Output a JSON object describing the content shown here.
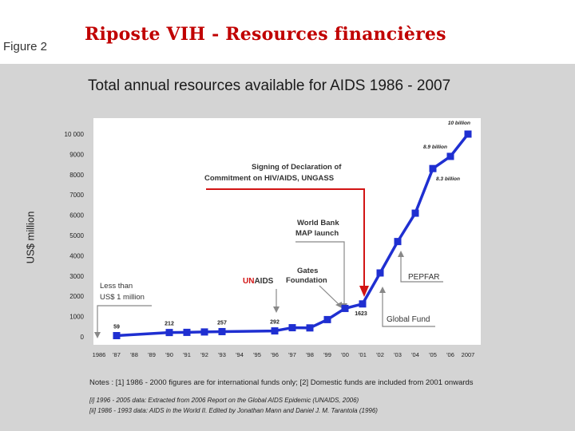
{
  "slide": {
    "figure_label": "Figure 2",
    "title": "Riposte VIH - Resources financières"
  },
  "chart_data": {
    "type": "line",
    "title": "Total annual resources available for AIDS 1986 - 2007",
    "ylabel": "US$ million",
    "xlabel": "",
    "ylim": [
      0,
      10000
    ],
    "yticks": [
      0,
      1000,
      2000,
      3000,
      4000,
      5000,
      6000,
      7000,
      8000,
      9000,
      10000
    ],
    "ytick_labels": [
      "0",
      "1000",
      "2000",
      "3000",
      "4000",
      "5000",
      "6000",
      "7000",
      "8000",
      "9000",
      "10 000"
    ],
    "categories": [
      "1986",
      "'87",
      "'88",
      "'89",
      "'90",
      "'91",
      "'92",
      "'93",
      "'94",
      "'95",
      "'96",
      "'97",
      "'98",
      "'99",
      "'00",
      "'01",
      "'02",
      "'03",
      "'04",
      "'05",
      "'06",
      "2007"
    ],
    "series": [
      {
        "points": [
          {
            "x": "'87",
            "y": 59
          },
          {
            "x": "'90",
            "y": 212
          },
          {
            "x": "'91",
            "y": 220
          },
          {
            "x": "'92",
            "y": 240
          },
          {
            "x": "'93",
            "y": 257
          },
          {
            "x": "'96",
            "y": 292
          },
          {
            "x": "'97",
            "y": 450
          },
          {
            "x": "'98",
            "y": 440
          },
          {
            "x": "'99",
            "y": 850
          },
          {
            "x": "'00",
            "y": 1400
          },
          {
            "x": "'01",
            "y": 1623
          },
          {
            "x": "'02",
            "y": 3150
          },
          {
            "x": "'03",
            "y": 4700
          },
          {
            "x": "'04",
            "y": 6100
          },
          {
            "x": "'05",
            "y": 8300
          },
          {
            "x": "'06",
            "y": 8900
          },
          {
            "x": "2007",
            "y": 10000
          }
        ],
        "color": "#1f2fd1"
      }
    ],
    "data_labels": [
      {
        "x": "'87",
        "y": 59,
        "text": "59"
      },
      {
        "x": "'90",
        "y": 212,
        "text": "212"
      },
      {
        "x": "'93",
        "y": 257,
        "text": "257"
      },
      {
        "x": "'96",
        "y": 292,
        "text": "292"
      },
      {
        "x": "'01",
        "y": 1623,
        "text": "1623"
      },
      {
        "x": "'05",
        "y": 8300,
        "text": "8.3 billion"
      },
      {
        "x": "'06",
        "y": 8900,
        "text": "8.9 billion"
      },
      {
        "x": "2007",
        "y": 10000,
        "text": "10 billion"
      }
    ],
    "annotations": {
      "ungass": [
        "Signing of Declaration of",
        "Commitment on HIV/AIDS, UNGASS"
      ],
      "world_bank": [
        "World Bank",
        "MAP launch"
      ],
      "gates": [
        "Gates",
        "Foundation"
      ],
      "unaids": {
        "part1": "UN",
        "part2": "AIDS"
      },
      "less_than": [
        "Less than",
        "US$ 1 million"
      ],
      "pepfar": "PEPFAR",
      "global_fund": "Global Fund"
    },
    "grid": false,
    "legend": "none",
    "accent_red": "#d21414"
  },
  "notes": {
    "main": "Notes : [1] 1986 - 2000 figures are for international funds only;  [2] Domestic funds are included from 2001 onwards",
    "ref1": "[i] 1996 - 2005 data: Extracted from 2006 Report on the Global AIDS Epidemic (UNAIDS, 2006)",
    "ref2": "[ii] 1986 - 1993 data: AIDS in the World II.  Edited by Jonathan Mann and Daniel J. M. Tarantola (1996)"
  }
}
